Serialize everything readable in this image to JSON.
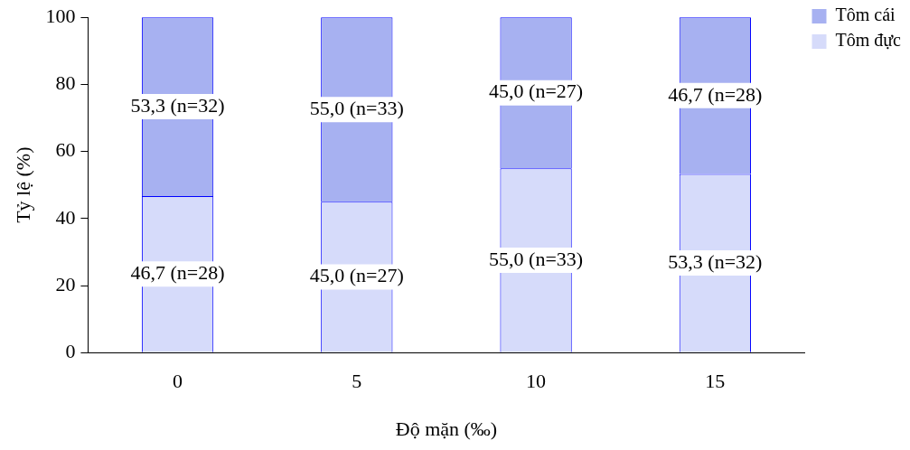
{
  "chart_data": {
    "type": "bar",
    "stacked": true,
    "xlabel": "Độ mặn (‰)",
    "ylabel": "Tỷ lệ (%)",
    "categories": [
      "0",
      "5",
      "10",
      "15"
    ],
    "series": [
      {
        "name": "Tôm đực",
        "color": "#d6dbfa",
        "values": [
          46.7,
          45.0,
          55.0,
          53.3
        ],
        "value_labels": [
          "46,7 (n=28)",
          "45,0 (n=27)",
          "55,0 (n=33)",
          "53,3 (n=32)"
        ]
      },
      {
        "name": "Tôm cái",
        "color": "#a7b1f1",
        "values": [
          53.3,
          55.0,
          45.0,
          46.7
        ],
        "value_labels": [
          "53,3 (n=32)",
          "55,0 (n=33)",
          "45,0 (n=27)",
          "46,7 (n=28)"
        ]
      }
    ],
    "ylim": [
      0,
      100
    ],
    "yticks": [
      0,
      20,
      40,
      60,
      80,
      100
    ],
    "grid": false,
    "legend": "top right"
  }
}
